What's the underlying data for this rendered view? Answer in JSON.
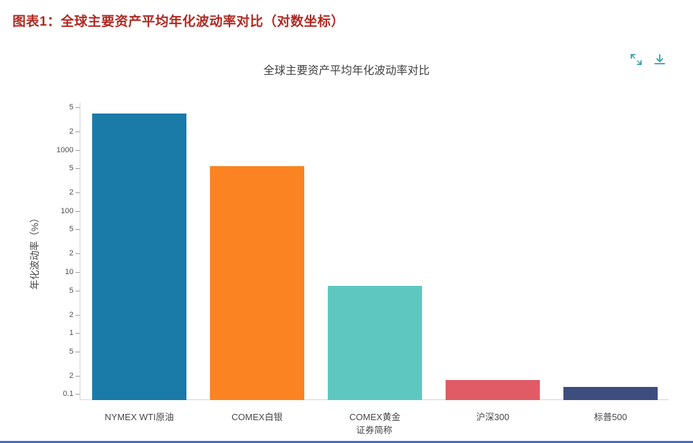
{
  "page": {
    "header_title": "图表1：全球主要资产平均年化波动率对比（对数坐标）"
  },
  "toolbar": {
    "expand_tooltip": "expand",
    "download_tooltip": "download",
    "icon_color": "#2f9fae"
  },
  "chart_data": {
    "type": "bar",
    "title": "全球主要资产平均年化波动率对比",
    "xlabel": "证券简称",
    "ylabel": "年化波动率（%）",
    "yscale": "log",
    "ylim": [
      0.08,
      6000
    ],
    "grid": false,
    "categories": [
      "NYMEX WTI原油",
      "COMEX白银",
      "COMEX黄金",
      "沪深300",
      "标普500"
    ],
    "values": [
      4000,
      550,
      6,
      0.17,
      0.13
    ],
    "bar_colors": [
      "#1a7aa8",
      "#fb8321",
      "#5ec8c0",
      "#e05b66",
      "#3d4e7e"
    ],
    "yticks": [
      {
        "value": 5000,
        "label": "5"
      },
      {
        "value": 2000,
        "label": "2"
      },
      {
        "value": 1000,
        "label": "1000"
      },
      {
        "value": 500,
        "label": "5"
      },
      {
        "value": 200,
        "label": "2"
      },
      {
        "value": 100,
        "label": "100"
      },
      {
        "value": 50,
        "label": "5"
      },
      {
        "value": 20,
        "label": "2"
      },
      {
        "value": 10,
        "label": "10"
      },
      {
        "value": 5,
        "label": "5"
      },
      {
        "value": 2,
        "label": "2"
      },
      {
        "value": 1,
        "label": "1"
      },
      {
        "value": 0.5,
        "label": "5"
      },
      {
        "value": 0.2,
        "label": "2"
      },
      {
        "value": 0.1,
        "label": "0.1"
      }
    ]
  }
}
